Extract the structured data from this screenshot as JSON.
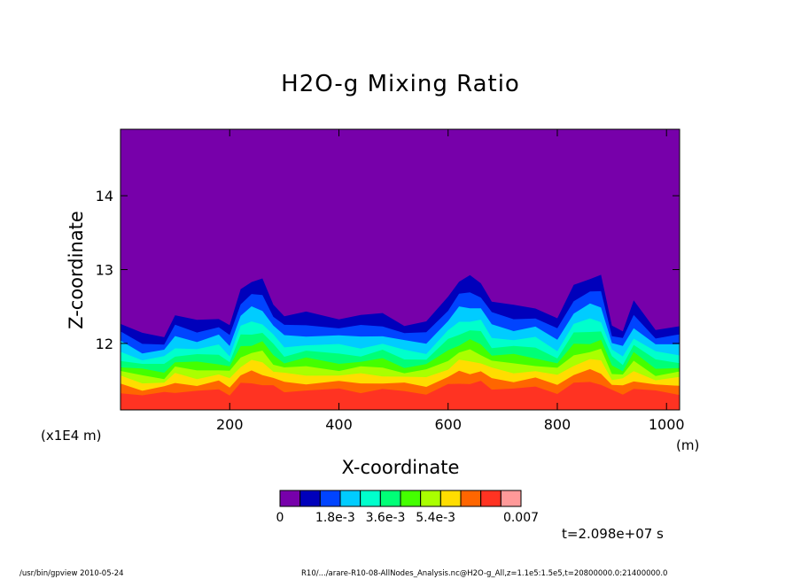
{
  "chart_data": {
    "type": "heatmap",
    "title": "H2O-g Mixing Ratio",
    "xlabel": "X-coordinate",
    "ylabel": "Z-coordinate",
    "x_unit": "(m)",
    "y_scale_note": "(x1E4 m)",
    "xlim": [
      0,
      1024
    ],
    "ylim": [
      11.1,
      14.9
    ],
    "x_ticks": [
      200,
      400,
      600,
      800,
      1000
    ],
    "x_tick_labels": [
      "200",
      "400",
      "600",
      "800",
      "1000"
    ],
    "y_ticks": [
      12,
      13,
      14
    ],
    "y_tick_labels": [
      "12",
      "13",
      "14"
    ],
    "colorbar": {
      "colors": [
        "#7700aa",
        "#0000bb",
        "#0044ff",
        "#00ccff",
        "#00ffcc",
        "#00ff77",
        "#44ff00",
        "#aaff00",
        "#ffdd00",
        "#ff6600",
        "#ff3322",
        "#ff9999"
      ],
      "labels": [
        "0",
        "1.8e-3",
        "3.6e-3",
        "5.4e-3",
        "0.007"
      ],
      "min": 0,
      "max": 0.007
    },
    "band_top_profile": {
      "x": [
        0,
        40,
        80,
        100,
        140,
        180,
        200,
        220,
        240,
        260,
        280,
        300,
        340,
        400,
        440,
        480,
        520,
        560,
        600,
        620,
        640,
        660,
        680,
        720,
        760,
        800,
        830,
        860,
        880,
        900,
        920,
        940,
        980,
        1024
      ],
      "top": [
        12.3,
        12.15,
        12.15,
        12.4,
        12.35,
        12.4,
        12.25,
        12.8,
        12.9,
        12.9,
        12.6,
        12.4,
        12.45,
        12.4,
        12.4,
        12.45,
        12.3,
        12.3,
        12.7,
        12.9,
        12.95,
        12.9,
        12.6,
        12.55,
        12.55,
        12.35,
        12.85,
        12.95,
        12.95,
        12.3,
        12.2,
        12.6,
        12.25,
        12.25
      ]
    },
    "time_label": "t=2.098e+07 s"
  },
  "footer": {
    "left": "/usr/bin/gpview  2010-05-24",
    "right": "R10/.../arare-R10-08-AllNodes_Analysis.nc@H2O-g_All,z=1.1e5:1.5e5,t=20800000.0:21400000.0"
  }
}
